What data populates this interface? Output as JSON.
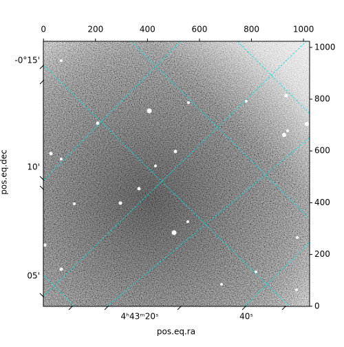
{
  "chart_data": {
    "type": "image",
    "xlabel": "pos.eq.ra",
    "ylabel": "pos.eq.dec",
    "xlim": [
      -0.5,
      1023.5
    ],
    "ylim": [
      -0.5,
      1023.5
    ],
    "xticks": [
      0,
      200,
      400,
      600,
      800,
      1000
    ],
    "yticks": [
      0,
      200,
      400,
      600,
      800,
      1000
    ],
    "dec_tick_labels": [
      "-0°15'",
      "10'",
      "05'"
    ],
    "ra_tick_labels": [
      "4ʰ43ᵐ20ˢ",
      "40ˢ"
    ],
    "grid": true
  }
}
